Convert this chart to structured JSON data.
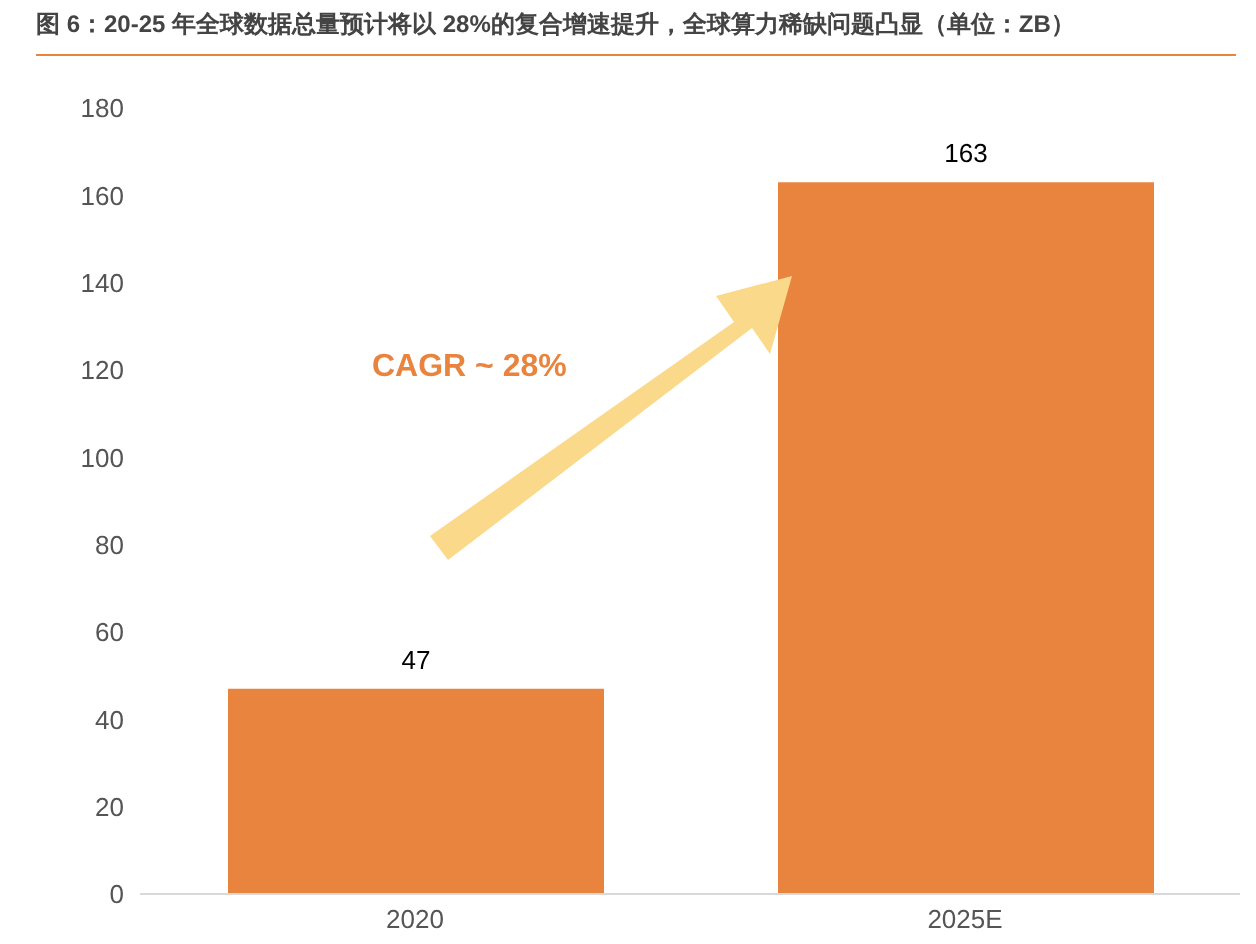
{
  "chart_data": {
    "type": "bar",
    "title": "图 6：20-25 年全球数据总量预计将以 28%的复合增速提升，全球算力稀缺问题凸显（单位：ZB）",
    "categories": [
      "2020",
      "2025E"
    ],
    "values": [
      47,
      163
    ],
    "color": "#e9843f",
    "ylim": [
      0,
      180
    ],
    "yticks": [
      0,
      20,
      40,
      60,
      80,
      100,
      120,
      140,
      160,
      180
    ],
    "data_labels": true,
    "annotations": [
      "CAGR ~ 28%"
    ]
  }
}
